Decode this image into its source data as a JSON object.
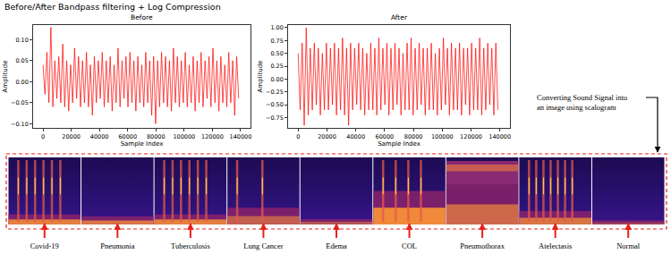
{
  "title": "Before/After Bandpass filtering + Log Compression",
  "chart_data": [
    {
      "type": "line",
      "title": "Before",
      "x_label": "Sample Index",
      "y_label": "Amplitude",
      "color": "#ff0000",
      "grid": false,
      "xlim": [
        -7000,
        147000
      ],
      "xticks": [
        0,
        20000,
        40000,
        60000,
        80000,
        100000,
        120000,
        140000
      ],
      "ylim": [
        -0.11,
        0.135
      ],
      "yticks": [
        {
          "value": -0.1,
          "label": "−0.10"
        },
        {
          "value": -0.05,
          "label": "−0.05"
        },
        {
          "value": 0,
          "label": "0.00"
        },
        {
          "value": 0.05,
          "label": "0.05"
        },
        {
          "value": 0.1,
          "label": "0.10"
        }
      ],
      "x": [
        0,
        1400,
        2800,
        4200,
        5600,
        7000,
        8400,
        9800,
        11200,
        12600,
        14000,
        15400,
        16800,
        18200,
        19600,
        21000,
        22400,
        23800,
        25200,
        26600,
        28000,
        29400,
        30800,
        32200,
        33600,
        35000,
        36400,
        37800,
        39200,
        40600,
        42000,
        43400,
        44800,
        46200,
        47600,
        49000,
        50400,
        51800,
        53200,
        54600,
        56000,
        57400,
        58800,
        60200,
        61600,
        63000,
        64400,
        65800,
        67200,
        68600,
        70000,
        71400,
        72800,
        74200,
        75600,
        77000,
        78400,
        79800,
        81200,
        82600,
        84000,
        85400,
        86800,
        88200,
        89600,
        91000,
        92400,
        93800,
        95200,
        96600,
        98000,
        99400,
        100800,
        102200,
        103600,
        105000,
        106400,
        107800,
        109200,
        110600,
        112000,
        113400,
        114800,
        116200,
        117600,
        119000,
        120400,
        121800,
        123200,
        124600,
        126000,
        127400,
        128800,
        130200,
        131600,
        133000,
        134400,
        135800,
        137200,
        138600
      ],
      "values": [
        0.04,
        -0.03,
        0.07,
        -0.05,
        0.13,
        -0.06,
        0.05,
        -0.04,
        0.06,
        -0.05,
        0.09,
        -0.06,
        0.05,
        -0.07,
        0.04,
        -0.05,
        0.08,
        -0.04,
        0.06,
        -0.06,
        0.05,
        -0.05,
        0.07,
        -0.06,
        0.04,
        -0.08,
        0.06,
        -0.05,
        0.05,
        -0.04,
        0.07,
        -0.06,
        0.05,
        -0.05,
        0.06,
        -0.07,
        0.04,
        -0.05,
        0.08,
        -0.06,
        0.05,
        -0.04,
        0.06,
        -0.06,
        0.07,
        -0.05,
        0.05,
        -0.07,
        0.06,
        -0.05,
        0.04,
        -0.06,
        0.07,
        -0.05,
        0.05,
        -0.08,
        0.06,
        -0.1,
        0.05,
        -0.06,
        0.07,
        -0.05,
        0.06,
        -0.06,
        0.05,
        -0.07,
        0.08,
        -0.05,
        0.06,
        -0.06,
        0.05,
        -0.05,
        0.07,
        -0.06,
        0.04,
        -0.05,
        0.06,
        -0.07,
        0.05,
        -0.05,
        0.07,
        -0.06,
        0.05,
        -0.04,
        0.06,
        -0.06,
        0.08,
        -0.05,
        0.05,
        -0.07,
        0.06,
        -0.05,
        0.04,
        -0.06,
        0.07,
        -0.05,
        0.05,
        -0.08,
        0.06,
        -0.04
      ]
    },
    {
      "type": "line",
      "title": "After",
      "x_label": "Sample Index",
      "y_label": "Amplitude",
      "color": "#ff0000",
      "grid": false,
      "xlim": [
        -7000,
        147000
      ],
      "xticks": [
        0,
        20000,
        40000,
        60000,
        80000,
        100000,
        120000,
        140000
      ],
      "ylim": [
        -0.95,
        1.05
      ],
      "yticks": [
        {
          "value": -0.75,
          "label": "−0.75"
        },
        {
          "value": -0.5,
          "label": "−0.50"
        },
        {
          "value": -0.25,
          "label": "−0.25"
        },
        {
          "value": 0,
          "label": "0.00"
        },
        {
          "value": 0.25,
          "label": "0.25"
        },
        {
          "value": 0.5,
          "label": "0.50"
        },
        {
          "value": 0.75,
          "label": "0.75"
        },
        {
          "value": 1,
          "label": "1.00"
        }
      ],
      "x": [
        0,
        1400,
        2800,
        4200,
        5600,
        7000,
        8400,
        9800,
        11200,
        12600,
        14000,
        15400,
        16800,
        18200,
        19600,
        21000,
        22400,
        23800,
        25200,
        26600,
        28000,
        29400,
        30800,
        32200,
        33600,
        35000,
        36400,
        37800,
        39200,
        40600,
        42000,
        43400,
        44800,
        46200,
        47600,
        49000,
        50400,
        51800,
        53200,
        54600,
        56000,
        57400,
        58800,
        60200,
        61600,
        63000,
        64400,
        65800,
        67200,
        68600,
        70000,
        71400,
        72800,
        74200,
        75600,
        77000,
        78400,
        79800,
        81200,
        82600,
        84000,
        85400,
        86800,
        88200,
        89600,
        91000,
        92400,
        93800,
        95200,
        96600,
        98000,
        99400,
        100800,
        102200,
        103600,
        105000,
        106400,
        107800,
        109200,
        110600,
        112000,
        113400,
        114800,
        116200,
        117600,
        119000,
        120400,
        121800,
        123200,
        124600,
        126000,
        127400,
        128800,
        130200,
        131600,
        133000,
        134400,
        135800,
        137200,
        138600
      ],
      "values": [
        0.5,
        -0.6,
        0.7,
        -0.9,
        1.0,
        -0.7,
        0.6,
        -0.6,
        0.7,
        -0.5,
        0.6,
        -0.7,
        0.5,
        -0.6,
        0.7,
        -0.6,
        0.6,
        -0.5,
        0.7,
        -0.7,
        0.6,
        -0.6,
        0.8,
        -0.7,
        0.6,
        -0.9,
        0.7,
        -0.6,
        0.6,
        -0.5,
        0.7,
        -0.6,
        0.6,
        -0.7,
        0.5,
        -0.6,
        0.7,
        -0.6,
        0.6,
        -0.7,
        0.8,
        -0.6,
        0.6,
        -0.5,
        0.7,
        -0.7,
        0.6,
        -0.6,
        0.7,
        -0.5,
        0.6,
        -0.7,
        0.5,
        -0.6,
        0.7,
        -0.6,
        0.8,
        -0.7,
        0.6,
        -0.6,
        0.7,
        -0.5,
        0.6,
        -0.7,
        0.6,
        -0.6,
        0.7,
        -0.6,
        0.5,
        -0.7,
        0.6,
        -0.6,
        0.8,
        -0.5,
        0.6,
        -0.7,
        0.7,
        -0.6,
        0.6,
        -0.6,
        0.7,
        -0.7,
        0.6,
        -0.5,
        0.6,
        -0.7,
        0.7,
        -0.6,
        0.6,
        -0.6,
        0.8,
        -0.7,
        0.6,
        -0.6,
        0.7,
        -0.5,
        0.6,
        -0.7,
        0.7,
        -0.6
      ]
    }
  ],
  "annotation": [
    "Converting Sound Signal into",
    "an image using scalogram"
  ],
  "scalogram_labels": [
    "Covid-19",
    "Pneumonia",
    "Tuberculosis",
    "Lung Cancer",
    "Edema",
    "COL",
    "Pneumothorax",
    "Atelectasis",
    "Normal"
  ]
}
